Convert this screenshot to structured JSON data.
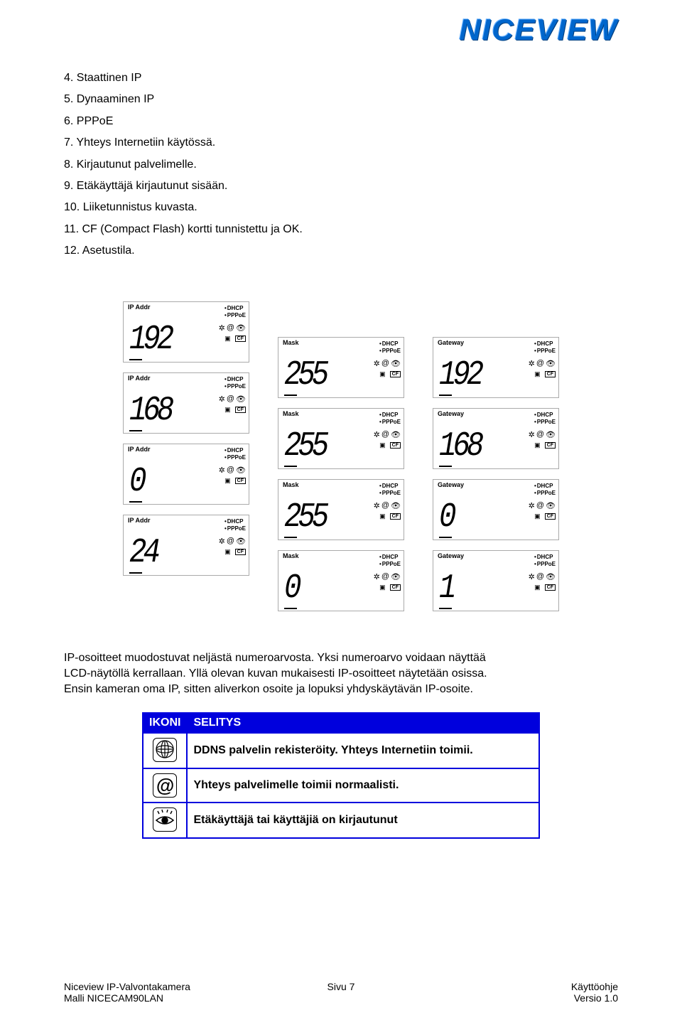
{
  "logo_text": "NICEVIEW",
  "list": [
    {
      "n": "4.",
      "text": "Staattinen IP"
    },
    {
      "n": "5.",
      "text": "Dynaaminen IP"
    },
    {
      "n": "6.",
      "text": "PPPoE"
    },
    {
      "n": "7.",
      "text": "Yhteys Internetiin käytössä."
    },
    {
      "n": "8.",
      "text": "Kirjautunut palvelimelle."
    },
    {
      "n": "9.",
      "text": "Etäkäyttäjä kirjautunut sisään."
    },
    {
      "n": "10.",
      "text": "Liiketunnistus kuvasta."
    },
    {
      "n": "11.",
      "text": "CF (Compact Flash) kortti tunnistettu ja OK."
    },
    {
      "n": "12.",
      "text": "Asetustila."
    }
  ],
  "lcd": {
    "side_line1": "DHCP",
    "side_line2": "PPPoE",
    "cf_text": "CF",
    "columns": [
      {
        "label": "IP Addr",
        "values": [
          "192",
          "168",
          "0",
          "24"
        ]
      },
      {
        "label": "Mask",
        "values": [
          "255",
          "255",
          "255",
          "0"
        ]
      },
      {
        "label": "Gateway",
        "values": [
          "192",
          "168",
          "0",
          "1"
        ]
      }
    ]
  },
  "desc_lines": [
    "IP-osoitteet muodostuvat neljästä numeroarvosta. Yksi numeroarvo voidaan näyttää",
    "LCD-näytöllä kerrallaan. Yllä olevan kuvan mukaisesti IP-osoitteet näytetään osissa.",
    "Ensin kameran oma IP, sitten aliverkon osoite ja lopuksi yhdyskäytävän IP-osoite."
  ],
  "table": {
    "header_icon": "IKONI",
    "header_desc": "SELITYS",
    "rows": [
      {
        "icon": "web",
        "text": "DDNS palvelin rekisteröity. Yhteys Internetiin toimii."
      },
      {
        "icon": "at",
        "text": "Yhteys palvelimelle toimii normaalisti."
      },
      {
        "icon": "eye",
        "text": "Etäkäyttäjä tai käyttäjiä on kirjautunut"
      }
    ]
  },
  "footer": {
    "left_line1": "Niceview IP-Valvontakamera",
    "left_line2": "Malli NICECAM90LAN",
    "center": "Sivu 7",
    "right_line1": "Käyttöohje",
    "right_line2": "Versio 1.0"
  }
}
